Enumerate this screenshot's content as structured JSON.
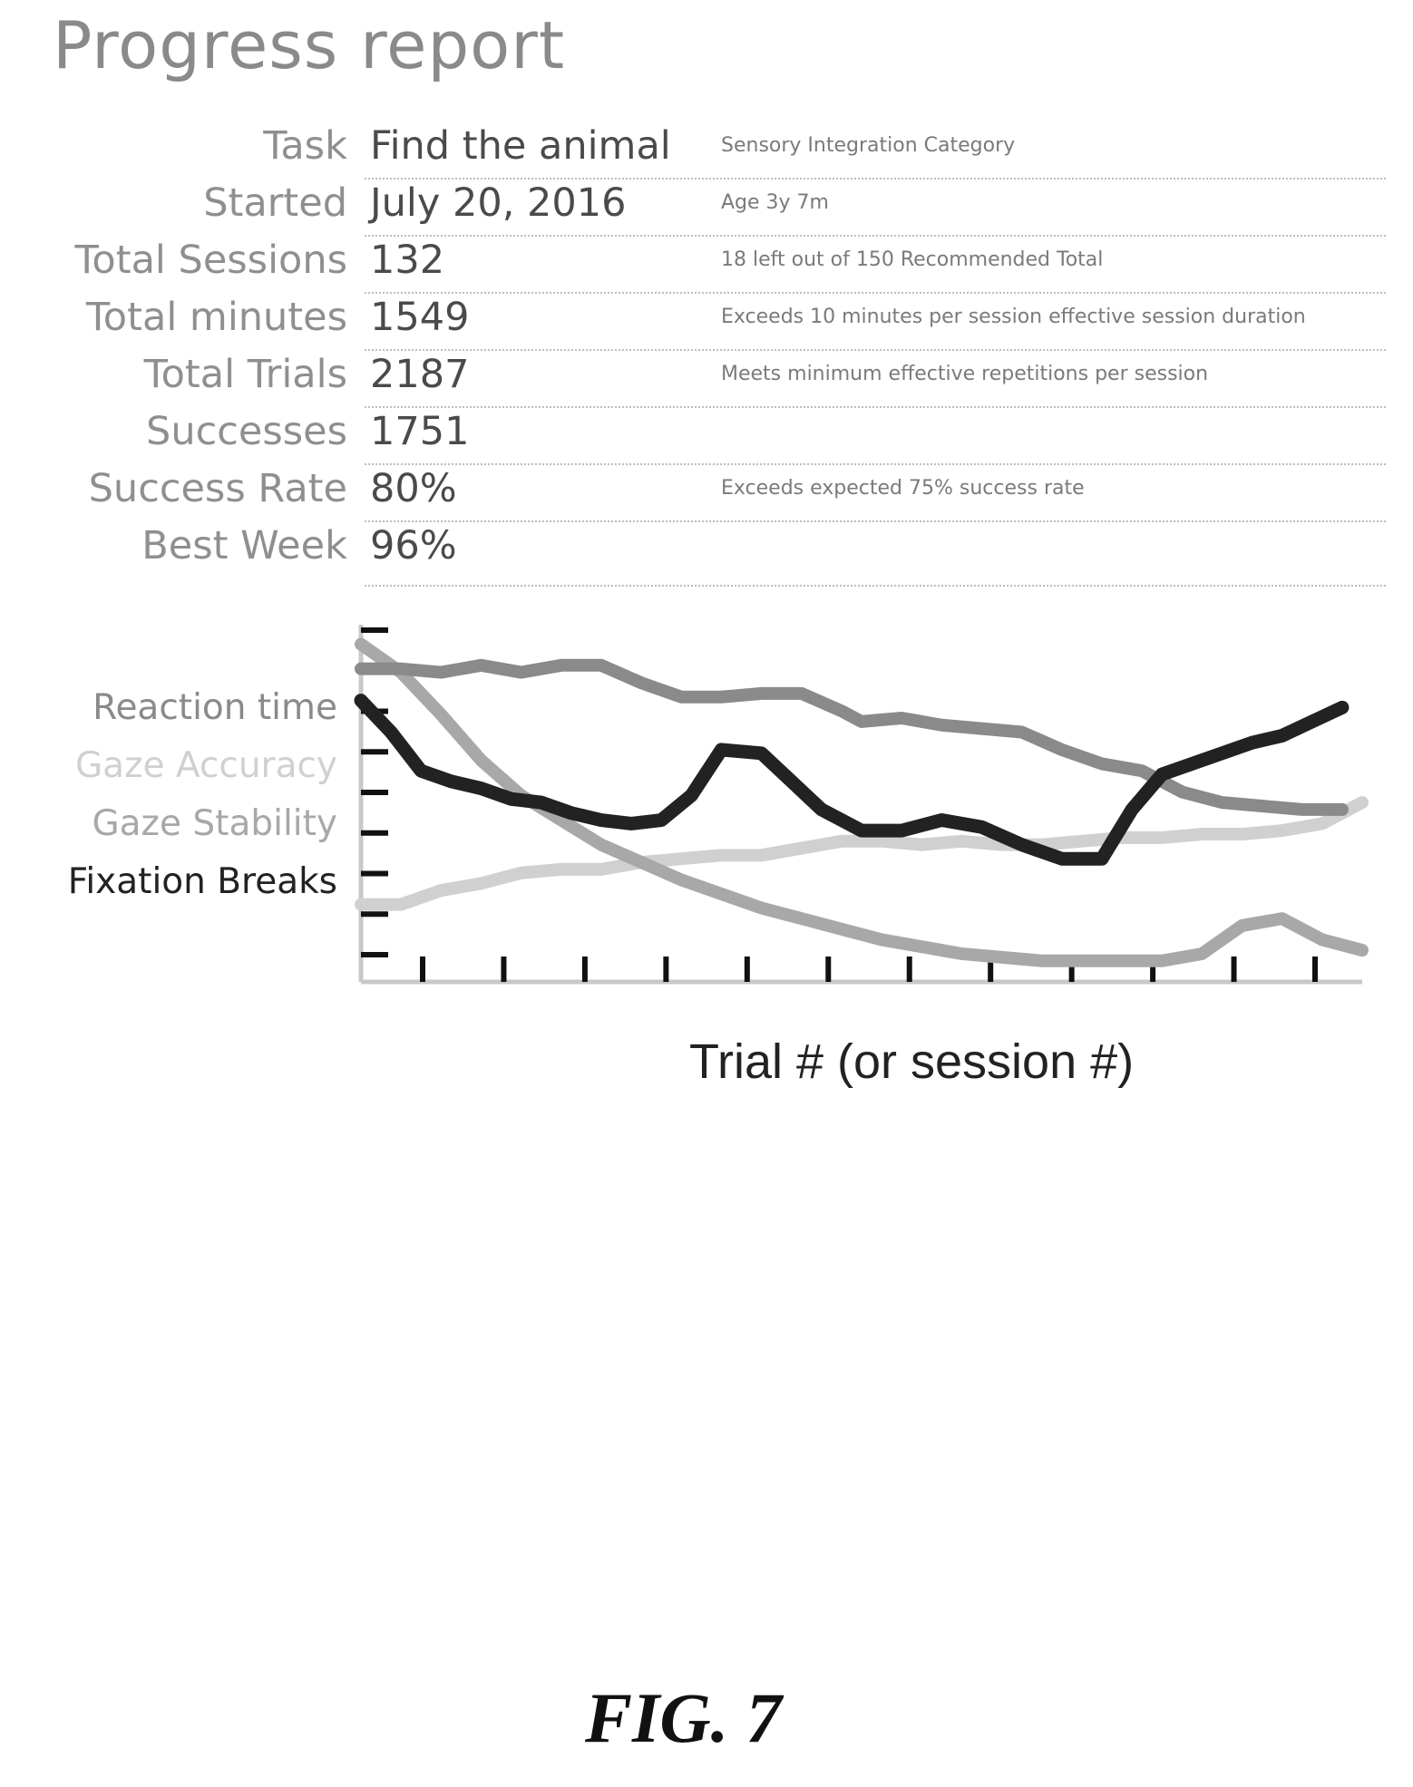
{
  "title": "Progress report",
  "rows": [
    {
      "label": "Task",
      "value": "Find the animal",
      "note": "Sensory Integration Category"
    },
    {
      "label": "Started",
      "value": "July 20, 2016",
      "note": "Age 3y 7m"
    },
    {
      "label": "Total Sessions",
      "value": "132",
      "note": "18 left out of 150 Recommended  Total"
    },
    {
      "label": "Total minutes",
      "value": "1549",
      "note": "Exceeds 10 minutes per session effective session duration"
    },
    {
      "label": "Total Trials",
      "value": "2187",
      "note": "Meets minimum effective repetitions per session"
    },
    {
      "label": "Successes",
      "value": "1751",
      "note": ""
    },
    {
      "label": "Success Rate",
      "value": "80%",
      "note": "Exceeds expected 75% success rate"
    },
    {
      "label": "Best Week",
      "value": "96%",
      "note": ""
    }
  ],
  "figure_label": "FIG. 7",
  "chart_data": {
    "type": "line",
    "xlabel": "Trial # (or session #)",
    "ylabel": "",
    "xlim": [
      0,
      100
    ],
    "ylim": [
      0,
      100
    ],
    "x_tick_count": 12,
    "y_tick_count": 9,
    "grid": false,
    "legend_position": "left",
    "series": [
      {
        "name": "Reaction time",
        "color": "#8a8a8a",
        "x": [
          0,
          4,
          8,
          12,
          16,
          20,
          24,
          28,
          32,
          36,
          40,
          44,
          48,
          50,
          54,
          58,
          62,
          66,
          70,
          74,
          78,
          82,
          86,
          90,
          94,
          98
        ],
        "y": [
          89,
          89,
          88,
          90,
          88,
          90,
          90,
          85,
          81,
          81,
          82,
          82,
          77,
          74,
          75,
          73,
          72,
          71,
          66,
          62,
          60,
          54,
          51,
          50,
          49,
          49
        ]
      },
      {
        "name": "Gaze Accuracy",
        "color": "#d0d0d0",
        "x": [
          0,
          4,
          8,
          12,
          16,
          20,
          24,
          28,
          32,
          36,
          40,
          44,
          48,
          52,
          56,
          60,
          64,
          68,
          72,
          76,
          80,
          84,
          88,
          92,
          96,
          100
        ],
        "y": [
          22,
          22,
          26,
          28,
          31,
          32,
          32,
          34,
          35,
          36,
          36,
          38,
          40,
          40,
          39,
          40,
          39,
          39,
          40,
          41,
          41,
          42,
          42,
          43,
          45,
          51
        ]
      },
      {
        "name": "Gaze Stability",
        "color": "#a8a8a8",
        "x": [
          0,
          4,
          8,
          12,
          16,
          20,
          24,
          28,
          32,
          36,
          40,
          44,
          48,
          52,
          56,
          60,
          64,
          68,
          72,
          76,
          80,
          84,
          88,
          92,
          96,
          100
        ],
        "y": [
          96,
          88,
          76,
          63,
          53,
          46,
          39,
          34,
          29,
          25,
          21,
          18,
          15,
          12,
          10,
          8,
          7,
          6,
          6,
          6,
          6,
          8,
          16,
          18,
          12,
          9
        ]
      },
      {
        "name": "Fixation Breaks",
        "color": "#222222",
        "x": [
          0,
          3,
          6,
          9,
          12,
          15,
          18,
          21,
          24,
          27,
          30,
          33,
          36,
          40,
          43,
          46,
          50,
          54,
          58,
          62,
          66,
          70,
          74,
          77,
          80,
          83,
          86,
          89,
          92,
          95,
          98
        ],
        "y": [
          80,
          71,
          60,
          57,
          55,
          52,
          51,
          48,
          46,
          45,
          46,
          53,
          66,
          65,
          57,
          49,
          43,
          43,
          46,
          44,
          39,
          35,
          35,
          49,
          59,
          62,
          65,
          68,
          70,
          74,
          78
        ]
      }
    ]
  }
}
